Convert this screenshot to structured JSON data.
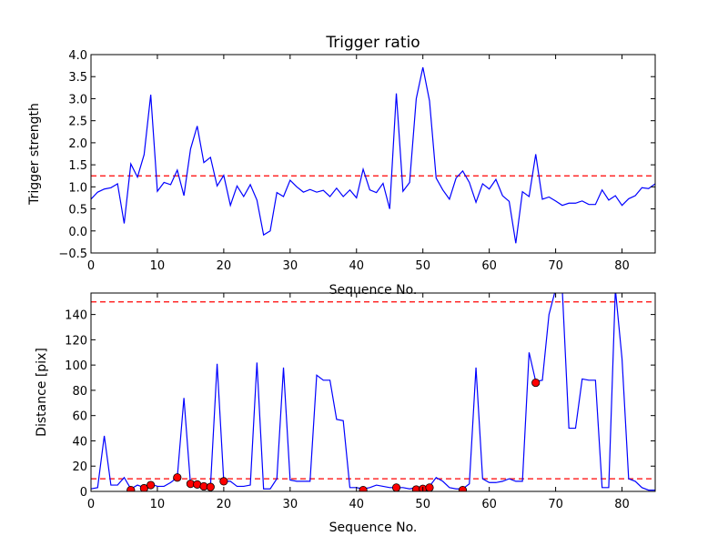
{
  "chart_data": [
    {
      "type": "line",
      "title": "Trigger ratio",
      "xlabel": "Sequence No.",
      "ylabel": "Trigger strength",
      "xlim": [
        0,
        85
      ],
      "ylim": [
        -0.5,
        4.0
      ],
      "xticks": [
        "0",
        "10",
        "20",
        "30",
        "40",
        "50",
        "60",
        "70",
        "80"
      ],
      "yticks": [
        "−0.5",
        "0.0",
        "0.5",
        "1.0",
        "1.5",
        "2.0",
        "2.5",
        "3.0",
        "3.5",
        "4.0"
      ],
      "threshold": 1.25,
      "colors": {
        "line": "#0000ff",
        "threshold": "#ff0000"
      },
      "series": [
        {
          "x": [
            0,
            1,
            2,
            3,
            4,
            5,
            6,
            7,
            8,
            9,
            10,
            11,
            12,
            13,
            14,
            15,
            16,
            17,
            18,
            19,
            20,
            21,
            22,
            23,
            24,
            25,
            26,
            27,
            28,
            29,
            30,
            31,
            32,
            33,
            34,
            35,
            36,
            37,
            38,
            39,
            40,
            41,
            42,
            43,
            44,
            45,
            46,
            47,
            48,
            49,
            50,
            51,
            52,
            53,
            54,
            55,
            56,
            57,
            58,
            59,
            60,
            61,
            62,
            63,
            64,
            65,
            66,
            67,
            68,
            69,
            70,
            71,
            72,
            73,
            74,
            75,
            76,
            77,
            78,
            79,
            80,
            81,
            82,
            83,
            84,
            85
          ],
          "values": [
            0.72,
            0.88,
            0.95,
            0.98,
            1.07,
            0.17,
            1.52,
            1.22,
            1.73,
            3.09,
            0.9,
            1.1,
            1.05,
            1.38,
            0.8,
            1.86,
            2.38,
            1.55,
            1.67,
            1.02,
            1.26,
            0.58,
            1.02,
            0.78,
            1.05,
            0.7,
            -0.09,
            0.0,
            0.87,
            0.78,
            1.15,
            1.0,
            0.88,
            0.94,
            0.88,
            0.92,
            0.78,
            0.97,
            0.78,
            0.93,
            0.75,
            1.4,
            0.93,
            0.87,
            1.08,
            0.5,
            3.12,
            0.9,
            1.1,
            3.0,
            3.71,
            2.95,
            1.2,
            0.93,
            0.72,
            1.2,
            1.36,
            1.1,
            0.65,
            1.07,
            0.95,
            1.17,
            0.8,
            0.67,
            -0.28,
            0.89,
            0.78,
            1.74,
            0.72,
            0.77,
            0.68,
            0.58,
            0.63,
            0.63,
            0.68,
            0.6,
            0.6,
            0.93,
            0.7,
            0.8,
            0.58,
            0.73,
            0.8,
            0.98,
            0.96,
            1.07
          ]
        }
      ]
    },
    {
      "type": "line",
      "title": "",
      "xlabel": "Sequence No.",
      "ylabel": "Distance [pix]",
      "xlim": [
        0,
        85
      ],
      "ylim": [
        0,
        157
      ],
      "xticks": [
        "0",
        "10",
        "20",
        "30",
        "40",
        "50",
        "60",
        "70",
        "80"
      ],
      "yticks": [
        "0",
        "20",
        "40",
        "60",
        "80",
        "100",
        "120",
        "140"
      ],
      "thresholds": [
        150,
        10
      ],
      "colors": {
        "line": "#0000ff",
        "threshold": "#ff0000",
        "marker": "#ff0000"
      },
      "series": [
        {
          "x": [
            0,
            1,
            2,
            3,
            4,
            5,
            6,
            7,
            8,
            9,
            10,
            11,
            12,
            13,
            14,
            15,
            16,
            17,
            18,
            19,
            20,
            21,
            22,
            23,
            24,
            25,
            26,
            27,
            28,
            29,
            30,
            31,
            32,
            33,
            34,
            35,
            36,
            37,
            38,
            39,
            40,
            41,
            42,
            43,
            44,
            45,
            46,
            47,
            48,
            49,
            50,
            51,
            52,
            53,
            54,
            55,
            56,
            57,
            58,
            59,
            60,
            61,
            62,
            63,
            64,
            65,
            66,
            67,
            68,
            69,
            70,
            71,
            72,
            73,
            74,
            75,
            76,
            77,
            78,
            79,
            80,
            81,
            82,
            83,
            84,
            85
          ],
          "values": [
            2,
            3,
            44,
            5,
            5,
            11,
            2,
            5,
            3,
            6,
            4,
            4,
            7,
            11,
            74,
            5,
            6,
            4,
            4,
            101,
            8,
            8,
            4,
            4,
            5,
            102,
            2,
            2,
            10,
            98,
            9,
            8,
            8,
            8,
            92,
            88,
            88,
            57,
            56,
            3,
            3,
            2,
            3,
            5,
            4,
            3,
            3,
            3,
            2,
            3,
            3,
            4,
            11,
            8,
            3,
            2,
            2,
            6,
            98,
            10,
            7,
            7,
            8,
            10,
            8,
            8,
            110,
            87,
            88,
            140,
            160,
            160,
            50,
            50,
            89,
            88,
            88,
            3,
            3,
            160,
            105,
            10,
            8,
            3,
            1,
            1
          ]
        }
      ],
      "markers": {
        "x": [
          6,
          8,
          9,
          13,
          15,
          16,
          17,
          18,
          20,
          41,
          46,
          49,
          50,
          51,
          56,
          67
        ],
        "y": [
          1,
          2.5,
          5,
          11,
          6,
          5.5,
          4,
          3.5,
          8,
          1,
          3,
          1.5,
          2,
          3,
          1,
          86
        ]
      }
    }
  ]
}
